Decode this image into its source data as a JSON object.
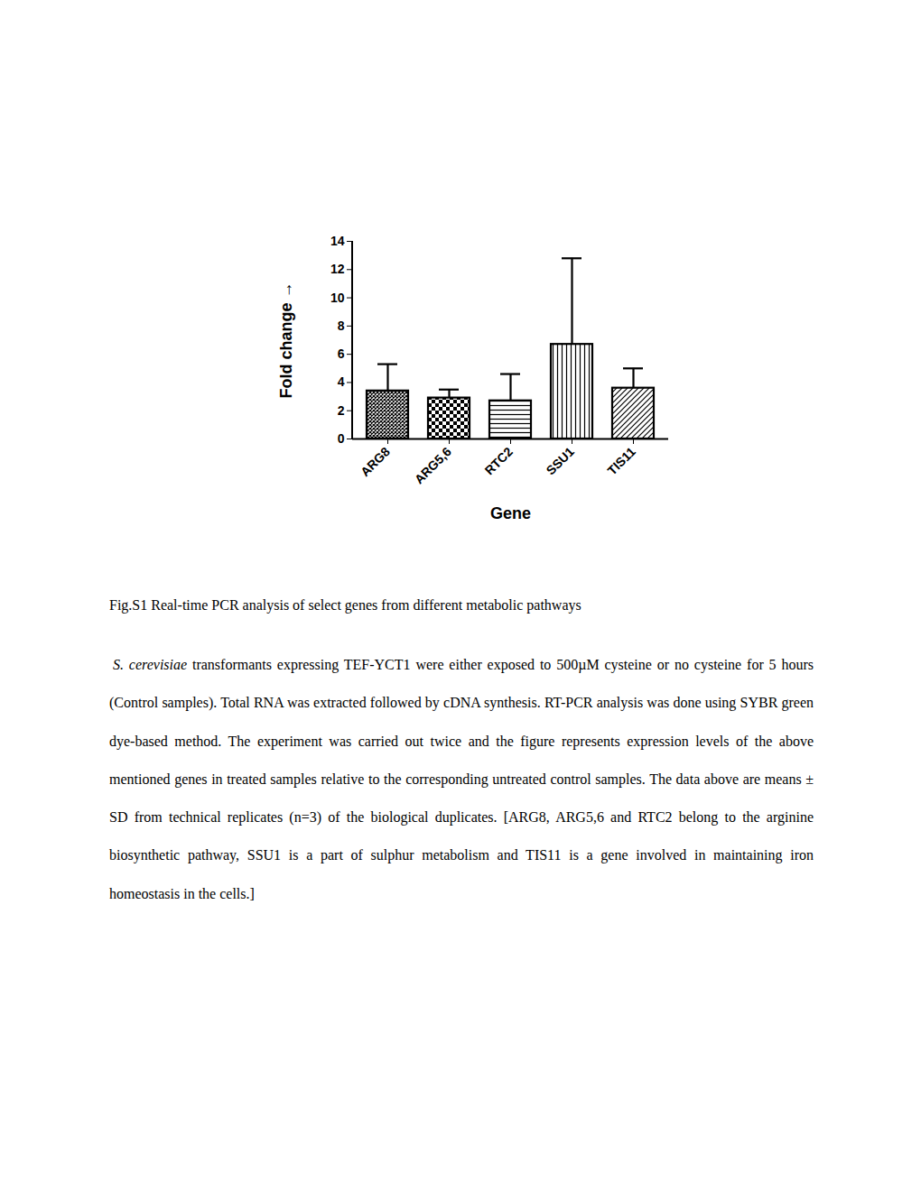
{
  "chart_data": {
    "type": "bar",
    "categories": [
      "ARG8",
      "ARG5,6",
      "RTC2",
      "SSU1",
      "TIS11"
    ],
    "values": [
      3.4,
      2.9,
      2.7,
      6.7,
      3.6
    ],
    "errors": [
      1.9,
      0.6,
      1.9,
      6.1,
      1.4
    ],
    "color": "#000000",
    "x_label": "Gene",
    "y_label": "Fold change",
    "ylim": [
      0,
      14
    ],
    "yticks": [
      0,
      2,
      4,
      6,
      8,
      10,
      12,
      14
    ],
    "grid": false
  },
  "caption": {
    "title": "Fig.S1 Real-time PCR analysis of select genes from different metabolic pathways",
    "body_italic": "S. cerevisiae",
    "body_text": " transformants expressing TEF-YCT1 were either exposed to 500µM cysteine or no cysteine for 5 hours (Control samples). Total RNA was extracted followed by cDNA synthesis. RT-PCR analysis was done using SYBR green dye-based method. The experiment was carried out twice and the figure represents expression levels of the above mentioned genes in treated samples relative to the corresponding untreated control samples. The data above are means ± SD from technical replicates (n=3) of the biological duplicates. [ARG8, ARG5,6 and RTC2 belong to the arginine biosynthetic pathway, SSU1 is a part of sulphur metabolism and TIS11 is a gene involved in maintaining iron homeostasis in the cells.]"
  }
}
